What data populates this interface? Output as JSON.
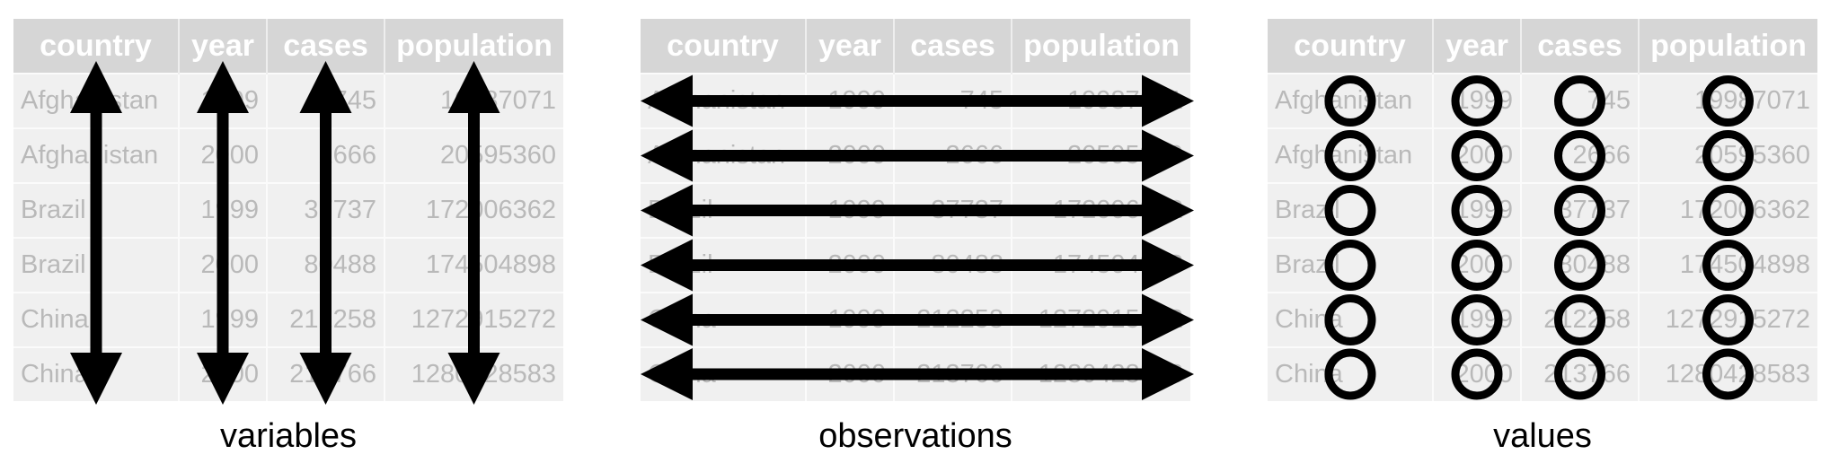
{
  "table": {
    "columns": [
      "country",
      "year",
      "cases",
      "population"
    ],
    "rows": [
      [
        "Afghanistan",
        "1999",
        "745",
        "19987071"
      ],
      [
        "Afghanistan",
        "2000",
        "2666",
        "20595360"
      ],
      [
        "Brazil",
        "1999",
        "37737",
        "172006362"
      ],
      [
        "Brazil",
        "2000",
        "80488",
        "174504898"
      ],
      [
        "China",
        "1999",
        "212258",
        "1272915272"
      ],
      [
        "China",
        "2000",
        "213766",
        "1280428583"
      ]
    ]
  },
  "panels": [
    {
      "caption": "variables",
      "mark": "vertical-arrow"
    },
    {
      "caption": "observations",
      "mark": "horizontal-arrow"
    },
    {
      "caption": "values",
      "mark": "circle"
    }
  ],
  "colors": {
    "header_bg": "#d6d6d6",
    "cell_bg": "#f0f0f0",
    "cell_text": "#b9b9b9",
    "mark": "#000000"
  }
}
